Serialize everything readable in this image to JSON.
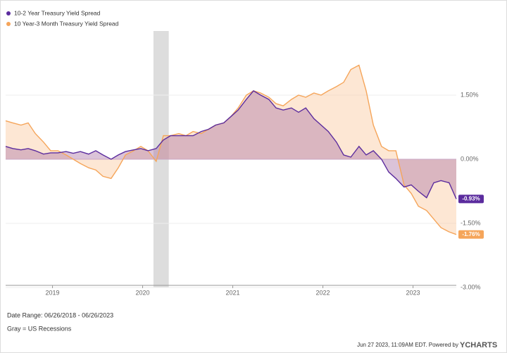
{
  "chart_data": {
    "type": "line",
    "x": [
      2018.48,
      2018.56,
      2018.65,
      2018.73,
      2018.81,
      2018.9,
      2018.98,
      2019.06,
      2019.15,
      2019.23,
      2019.31,
      2019.4,
      2019.48,
      2019.56,
      2019.65,
      2019.73,
      2019.81,
      2019.9,
      2019.98,
      2020.06,
      2020.15,
      2020.23,
      2020.31,
      2020.4,
      2020.48,
      2020.56,
      2020.65,
      2020.73,
      2020.81,
      2020.9,
      2020.98,
      2021.06,
      2021.15,
      2021.23,
      2021.31,
      2021.4,
      2021.48,
      2021.56,
      2021.65,
      2021.73,
      2021.81,
      2021.9,
      2021.98,
      2022.06,
      2022.15,
      2022.23,
      2022.31,
      2022.4,
      2022.48,
      2022.56,
      2022.65,
      2022.73,
      2022.81,
      2022.9,
      2022.98,
      2023.06,
      2023.15,
      2023.23,
      2023.31,
      2023.4,
      2023.48
    ],
    "series": [
      {
        "name": "10-2 Year Treasury Yield Spread",
        "color": "#5b2c9e",
        "fill": "#b07aa8",
        "last_label": "-0.93%",
        "values": [
          0.3,
          0.25,
          0.22,
          0.25,
          0.2,
          0.12,
          0.15,
          0.15,
          0.18,
          0.14,
          0.18,
          0.12,
          0.2,
          0.1,
          0.0,
          0.1,
          0.18,
          0.22,
          0.25,
          0.2,
          0.25,
          0.45,
          0.55,
          0.55,
          0.55,
          0.55,
          0.65,
          0.7,
          0.8,
          0.85,
          1.0,
          1.15,
          1.4,
          1.6,
          1.5,
          1.4,
          1.2,
          1.15,
          1.2,
          1.1,
          1.2,
          0.95,
          0.8,
          0.65,
          0.4,
          0.1,
          0.05,
          0.3,
          0.1,
          0.2,
          0.0,
          -0.3,
          -0.45,
          -0.65,
          -0.6,
          -0.75,
          -0.9,
          -0.55,
          -0.5,
          -0.55,
          -0.93
        ]
      },
      {
        "name": "10 Year-3 Month Treasury Yield Spread",
        "color": "#f5a55a",
        "fill": "#fbc9a0",
        "last_label": "-1.76%",
        "values": [
          0.9,
          0.85,
          0.8,
          0.85,
          0.6,
          0.4,
          0.2,
          0.2,
          0.1,
          0.0,
          -0.1,
          -0.2,
          -0.25,
          -0.4,
          -0.45,
          -0.2,
          0.1,
          0.2,
          0.3,
          0.2,
          -0.05,
          0.55,
          0.55,
          0.6,
          0.55,
          0.65,
          0.6,
          0.7,
          0.8,
          0.85,
          1.0,
          1.2,
          1.5,
          1.6,
          1.55,
          1.45,
          1.3,
          1.25,
          1.4,
          1.5,
          1.45,
          1.55,
          1.5,
          1.6,
          1.7,
          1.8,
          2.1,
          2.2,
          1.6,
          0.8,
          0.3,
          0.2,
          0.2,
          -0.6,
          -0.8,
          -1.1,
          -1.2,
          -1.4,
          -1.6,
          -1.7,
          -1.76
        ]
      }
    ],
    "xlim": [
      2018.48,
      2023.48
    ],
    "xticks": [
      2019,
      2020,
      2021,
      2022,
      2023
    ],
    "ylim": [
      -3.0,
      3.0
    ],
    "yticks": [
      {
        "value": -3.0,
        "label": "-3.00%"
      },
      {
        "value": -1.5,
        "label": "-1.50%"
      },
      {
        "value": 0,
        "label": "0.00%"
      },
      {
        "value": 1.5,
        "label": "1.50%"
      }
    ],
    "recessions": [
      [
        2020.12,
        2020.29
      ]
    ],
    "recession_color": "#dddddd",
    "date_range": "Date Range: 06/26/2018 - 06/26/2023",
    "recession_note": "Gray = US Recessions",
    "footer": "Jun 27 2023, 11:09AM EDT. Powered by",
    "brand": "YCHARTS"
  }
}
